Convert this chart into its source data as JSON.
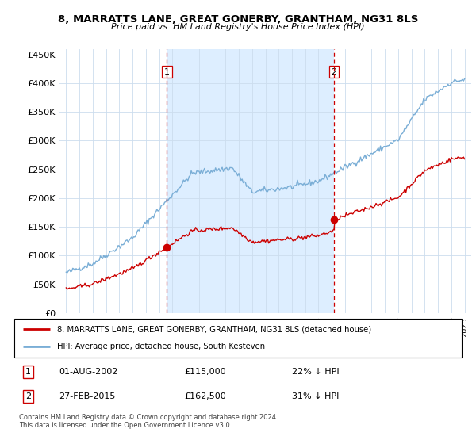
{
  "title": "8, MARRATTS LANE, GREAT GONERBY, GRANTHAM, NG31 8LS",
  "subtitle": "Price paid vs. HM Land Registry's House Price Index (HPI)",
  "legend_line1": "8, MARRATTS LANE, GREAT GONERBY, GRANTHAM, NG31 8LS (detached house)",
  "legend_line2": "HPI: Average price, detached house, South Kesteven",
  "transaction1_date": "01-AUG-2002",
  "transaction1_price": "£115,000",
  "transaction1_hpi": "22% ↓ HPI",
  "transaction2_date": "27-FEB-2015",
  "transaction2_price": "£162,500",
  "transaction2_hpi": "31% ↓ HPI",
  "footer": "Contains HM Land Registry data © Crown copyright and database right 2024.\nThis data is licensed under the Open Government Licence v3.0.",
  "hpi_color": "#7aaed6",
  "price_color": "#cc0000",
  "vline_color": "#cc0000",
  "shade_color": "#ddeeff",
  "grid_color": "#ccddee",
  "background_color": "#ffffff",
  "ylim": [
    0,
    460000
  ],
  "yticks": [
    0,
    50000,
    100000,
    150000,
    200000,
    250000,
    300000,
    350000,
    400000,
    450000
  ],
  "ytick_labels": [
    "£0",
    "£50K",
    "£100K",
    "£150K",
    "£200K",
    "£250K",
    "£300K",
    "£350K",
    "£400K",
    "£450K"
  ],
  "xlim_start": 1994.5,
  "xlim_end": 2025.5,
  "vline1_x": 2002.583,
  "vline2_x": 2015.167,
  "t1": 2002.583,
  "t2": 2015.167,
  "p1": 115000,
  "p2": 162500
}
